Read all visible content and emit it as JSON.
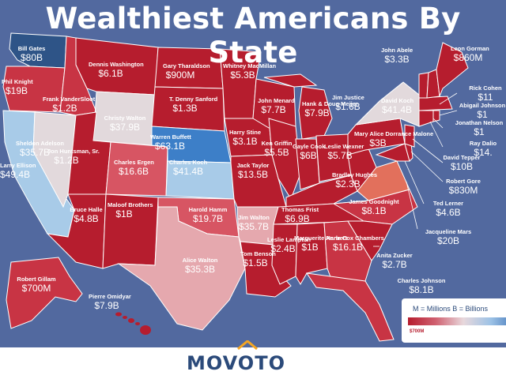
{
  "header": {
    "title": "Wealthiest Americans By State"
  },
  "footer": {
    "brand": "MOVOTO"
  },
  "legend": {
    "text": "M = Millions     B = Billions",
    "min_label": "$700M"
  },
  "colors": {
    "ocean": "#52699f",
    "dark_red": "#b61d2e",
    "red": "#c83444",
    "light_red": "#d75563",
    "pink": "#e5a8ae",
    "pale": "#e2d9dc",
    "light_blue": "#a8cbe8",
    "blue": "#3d7fc8",
    "dark_blue": "#2e5487"
  },
  "states": [
    {
      "name": "Bill Gates",
      "value": "$80B"
    },
    {
      "name": "Phil Knight",
      "value": "$19B"
    },
    {
      "name": "Dennis Washington",
      "value": "$6.1B"
    },
    {
      "name": "Gary Tharaldson",
      "value": "$900M"
    },
    {
      "name": "Whitney MacMillan",
      "value": "$5.3B"
    },
    {
      "name": "John Abele",
      "value": "$3.3B"
    },
    {
      "name": "Leon Gorman",
      "value": "$860M"
    },
    {
      "name": "Rick Cohen",
      "value": "$11"
    },
    {
      "name": "Abigail Johnson",
      "value": "$1"
    },
    {
      "name": "Jonathan Nelson",
      "value": "$1"
    },
    {
      "name": "Ray Dalio",
      "value": "$14."
    },
    {
      "name": "Frank VanderSloot",
      "value": "$1.2B"
    },
    {
      "name": "Christy Walton",
      "value": "$37.9B"
    },
    {
      "name": "T. Denny Sanford",
      "value": "$1.3B"
    },
    {
      "name": "John Menard",
      "value": "$7.7B"
    },
    {
      "name": "Hank & Doug Meijer",
      "value": "$7.9B"
    },
    {
      "name": "Jim Justice",
      "value": "$1.6B"
    },
    {
      "name": "David Koch",
      "value": "$41.4B"
    },
    {
      "name": "Sheldon Adelson",
      "value": "$35.7B"
    },
    {
      "name": "Harry Stine",
      "value": "$3.1B"
    },
    {
      "name": "Warren Buffett",
      "value": "$63.1B"
    },
    {
      "name": "Ken Griffin",
      "value": "$5.5B"
    },
    {
      "name": "Gayle Cook",
      "value": "$6B"
    },
    {
      "name": "Leslie Wexner",
      "value": "$5.7B"
    },
    {
      "name": "Mary Alice Dorrance Malone",
      "value": "$3B"
    },
    {
      "name": "David Tepper",
      "value": "$10B"
    },
    {
      "name": "Jon Huntsman, Sr.",
      "value": "$1.2B"
    },
    {
      "name": "Charles Ergen",
      "value": "$16.6B"
    },
    {
      "name": "Charles Koch",
      "value": "$41.4B"
    },
    {
      "name": "Jack Taylor",
      "value": "$13.5B"
    },
    {
      "name": "Bradley Hughes",
      "value": "$2.3B"
    },
    {
      "name": "Robert Gore",
      "value": "$830M"
    },
    {
      "name": "Ted Lerner",
      "value": "$4.6B"
    },
    {
      "name": "Larry Ellison",
      "value": "$49.4B"
    },
    {
      "name": "Bruce Halle",
      "value": "$4.8B"
    },
    {
      "name": "Maloof Brothers",
      "value": "$1B"
    },
    {
      "name": "Harold Hamm",
      "value": "$19.7B"
    },
    {
      "name": "Jim Walton",
      "value": "$35.7B"
    },
    {
      "name": "Thomas Frist",
      "value": "$6.9B"
    },
    {
      "name": "James Goodnight",
      "value": "$8.1B"
    },
    {
      "name": "Jacqueline Mars",
      "value": "$20B"
    },
    {
      "name": "Alice Walton",
      "value": "$35.3B"
    },
    {
      "name": "Tom Benson",
      "value": "$1.5B"
    },
    {
      "name": "Leslie Lampton",
      "value": "$2.4B"
    },
    {
      "name": "Marguerite Harbert",
      "value": "$1B"
    },
    {
      "name": "Anne Cox Chambers",
      "value": "$16.1B"
    },
    {
      "name": "Anita Zucker",
      "value": "$2.7B"
    },
    {
      "name": "Charles Johnson",
      "value": "$8.1B"
    },
    {
      "name": "Robert Gillam",
      "value": "$700M"
    },
    {
      "name": "Pierre Omidyar",
      "value": "$7.9B"
    }
  ]
}
